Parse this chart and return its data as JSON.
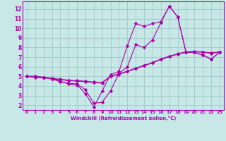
{
  "xlabel": "Windchill (Refroidissement éolien,°C)",
  "background_color": "#c8e8e8",
  "grid_color": "#a0c8c8",
  "line_color": "#aa00aa",
  "xlim": [
    -0.5,
    23.5
  ],
  "ylim": [
    1.5,
    12.8
  ],
  "xticks": [
    0,
    1,
    2,
    3,
    4,
    5,
    6,
    7,
    8,
    9,
    10,
    11,
    12,
    13,
    14,
    15,
    16,
    17,
    18,
    19,
    20,
    21,
    22,
    23
  ],
  "yticks": [
    2,
    3,
    4,
    5,
    6,
    7,
    8,
    9,
    10,
    11,
    12
  ],
  "series": [
    [
      5.0,
      5.0,
      4.9,
      4.7,
      4.5,
      4.2,
      4.1,
      3.2,
      1.8,
      3.5,
      5.2,
      5.5,
      8.2,
      10.5,
      10.2,
      10.5,
      10.7,
      12.3,
      11.2,
      7.5,
      7.5,
      7.2,
      6.8,
      7.5
    ],
    [
      5.0,
      5.0,
      4.9,
      4.8,
      4.4,
      4.3,
      4.2,
      3.6,
      2.2,
      2.3,
      3.5,
      5.3,
      6.0,
      8.3,
      8.0,
      8.8,
      10.6,
      12.3,
      11.2,
      7.5,
      7.5,
      7.2,
      6.8,
      7.5
    ],
    [
      5.0,
      4.9,
      4.85,
      4.75,
      4.65,
      4.55,
      4.5,
      4.45,
      4.35,
      4.3,
      5.0,
      5.2,
      5.5,
      5.8,
      6.1,
      6.4,
      6.75,
      7.05,
      7.3,
      7.5,
      7.55,
      7.5,
      7.4,
      7.5
    ],
    [
      5.0,
      4.95,
      4.9,
      4.8,
      4.7,
      4.6,
      4.55,
      4.5,
      4.4,
      4.35,
      5.05,
      5.25,
      5.55,
      5.85,
      6.15,
      6.45,
      6.8,
      7.1,
      7.35,
      7.55,
      7.6,
      7.55,
      7.45,
      7.55
    ]
  ]
}
